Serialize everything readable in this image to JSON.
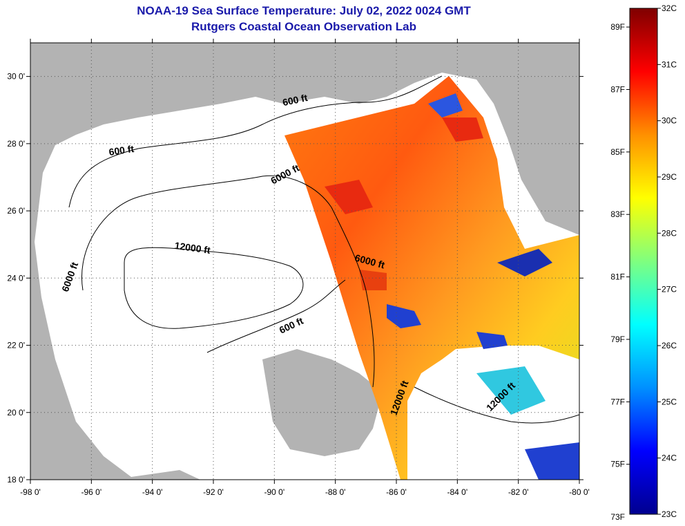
{
  "title": "NOAA-19 Sea Surface Temperature:  July 02, 2022 0024 GMT",
  "subtitle": "Rutgers Coastal Ocean Observation Lab",
  "map": {
    "lon_range": [
      -98,
      -80
    ],
    "lat_range": [
      18,
      31
    ],
    "lon_ticks": [
      {
        "value": -98,
        "label": "-98 0'"
      },
      {
        "value": -96,
        "label": "-96 0'"
      },
      {
        "value": -94,
        "label": "-94 0'"
      },
      {
        "value": -92,
        "label": "-92 0'"
      },
      {
        "value": -90,
        "label": "-90 0'"
      },
      {
        "value": -88,
        "label": "-88 0'"
      },
      {
        "value": -86,
        "label": "-86 0'"
      },
      {
        "value": -84,
        "label": "-84 0'"
      },
      {
        "value": -82,
        "label": "-82 0'"
      },
      {
        "value": -80,
        "label": "-80 0'"
      }
    ],
    "lat_ticks": [
      {
        "value": 30,
        "label": "30 0'"
      },
      {
        "value": 28,
        "label": "28 0'"
      },
      {
        "value": 26,
        "label": "26 0'"
      },
      {
        "value": 24,
        "label": "24 0'"
      },
      {
        "value": 22,
        "label": "22 0'"
      },
      {
        "value": 20,
        "label": "20 0'"
      },
      {
        "value": 18,
        "label": "18 0'"
      }
    ],
    "gridlines": "dotted",
    "land_color": "#b3b3b3",
    "nodata_color": "#ffffff",
    "contour_labels": [
      {
        "text": "600 ft",
        "lon": -89.3,
        "lat": 29.2
      },
      {
        "text": "600 ft",
        "lon": -95.0,
        "lat": 27.7
      },
      {
        "text": "6000 ft",
        "lon": -89.6,
        "lat": 27.0
      },
      {
        "text": "12000 ft",
        "lon": -92.7,
        "lat": 24.8
      },
      {
        "text": "6000 ft",
        "lon": -86.9,
        "lat": 24.4
      },
      {
        "text": "6000 ft",
        "lon": -96.6,
        "lat": 24.0
      },
      {
        "text": "600 ft",
        "lon": -89.4,
        "lat": 22.5
      },
      {
        "text": "12000 ft",
        "lon": -85.8,
        "lat": 20.4
      },
      {
        "text": "12000 ft",
        "lon": -82.5,
        "lat": 20.4
      }
    ]
  },
  "colorbar": {
    "min_c": 23,
    "max_c": 32,
    "celsius_labels": [
      "32C",
      "31C",
      "30C",
      "29C",
      "28C",
      "27C",
      "26C",
      "25C",
      "24C",
      "23C"
    ],
    "fahrenheit_labels": [
      "89F",
      "87F",
      "85F",
      "83F",
      "81F",
      "79F",
      "77F",
      "75F",
      "73F"
    ],
    "fahrenheit_values": [
      89,
      87,
      85,
      83,
      81,
      79,
      77,
      75,
      73
    ],
    "colors": [
      "#00008f",
      "#0000ff",
      "#0090ff",
      "#00ffff",
      "#7fff7f",
      "#ffff00",
      "#ff9000",
      "#ff0000",
      "#7f0000"
    ]
  }
}
